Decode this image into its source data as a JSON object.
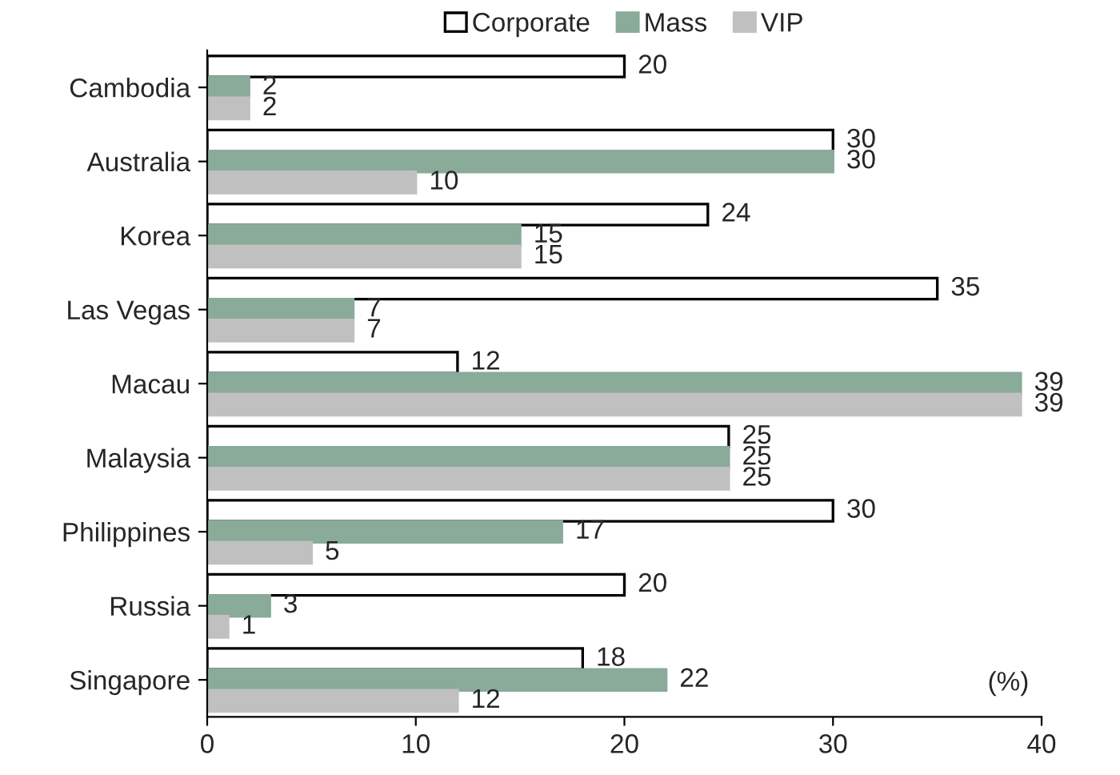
{
  "chart_data": {
    "type": "bar",
    "orientation": "horizontal",
    "categories": [
      "Cambodia",
      "Australia",
      "Korea",
      "Las Vegas",
      "Macau",
      "Malaysia",
      "Philippines",
      "Russia",
      "Singapore"
    ],
    "series": [
      {
        "name": "Corporate",
        "color": "#ffffff",
        "values": [
          20,
          30,
          24,
          35,
          12,
          25,
          30,
          20,
          18
        ]
      },
      {
        "name": "Mass",
        "color": "#8aaa9a",
        "values": [
          2,
          30,
          15,
          7,
          39,
          25,
          17,
          3,
          22
        ]
      },
      {
        "name": "VIP",
        "color": "#c0c0c0",
        "values": [
          2,
          10,
          15,
          7,
          39,
          25,
          5,
          1,
          12
        ]
      }
    ],
    "xlim": [
      0,
      40
    ],
    "xticks": [
      0,
      10,
      20,
      30,
      40
    ],
    "data_labels": true,
    "legend": "top",
    "grid": false,
    "annotations": [
      "(%)"
    ]
  }
}
